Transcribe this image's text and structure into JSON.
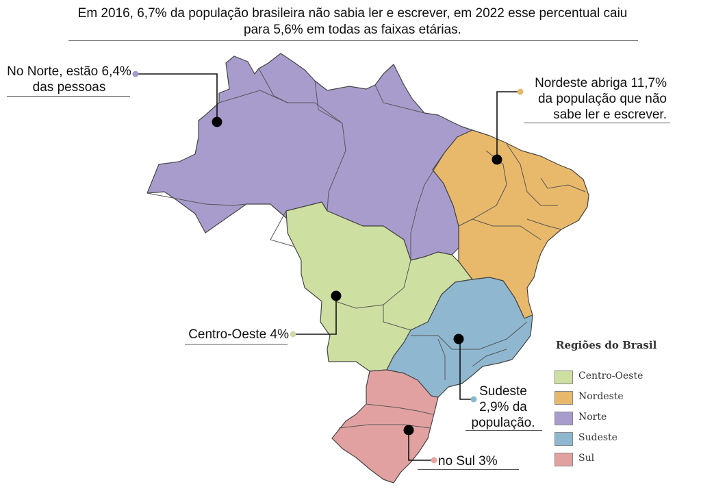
{
  "title": "Em 2016, 6,7% da população brasileira não sabia ler e escrever, em 2022 esse percentual caiu para 5,6% em todas as faixas etárias.",
  "callouts": {
    "norte": {
      "line1": "No Norte, estão 6,4%",
      "line2": "das pessoas",
      "marker_color": "#a29ccb"
    },
    "nordeste": {
      "line1": "Nordeste abriga 11,7%",
      "line2": "da população que não",
      "line3": "sabe ler e escrever.",
      "marker_color": "#e5b869"
    },
    "centro_oeste": {
      "line1": "Centro-Oeste 4%",
      "marker_color": "#ccdba7"
    },
    "sudeste": {
      "line1": "Sudeste",
      "line2": "2,9% da",
      "line3": "população.",
      "marker_color": "#8ab8cf"
    },
    "sul": {
      "line1": "no Sul 3%",
      "marker_color": "#e5a5a2"
    }
  },
  "legend": {
    "title": "Regiões do Brasil",
    "items": [
      {
        "label": "Centro-Oeste",
        "color": "#cedfa2"
      },
      {
        "label": "Nordeste",
        "color": "#e8b96a"
      },
      {
        "label": "Norte",
        "color": "#a89ccd"
      },
      {
        "label": "Sudeste",
        "color": "#8fb8d0"
      },
      {
        "label": "Sul",
        "color": "#e2a1a1"
      }
    ]
  },
  "regions": {
    "norte": "#a89ccd",
    "nordeste": "#e8b96a",
    "centro_oeste": "#cedfa2",
    "sudeste": "#8fb8d0",
    "sul": "#e2a1a1"
  }
}
